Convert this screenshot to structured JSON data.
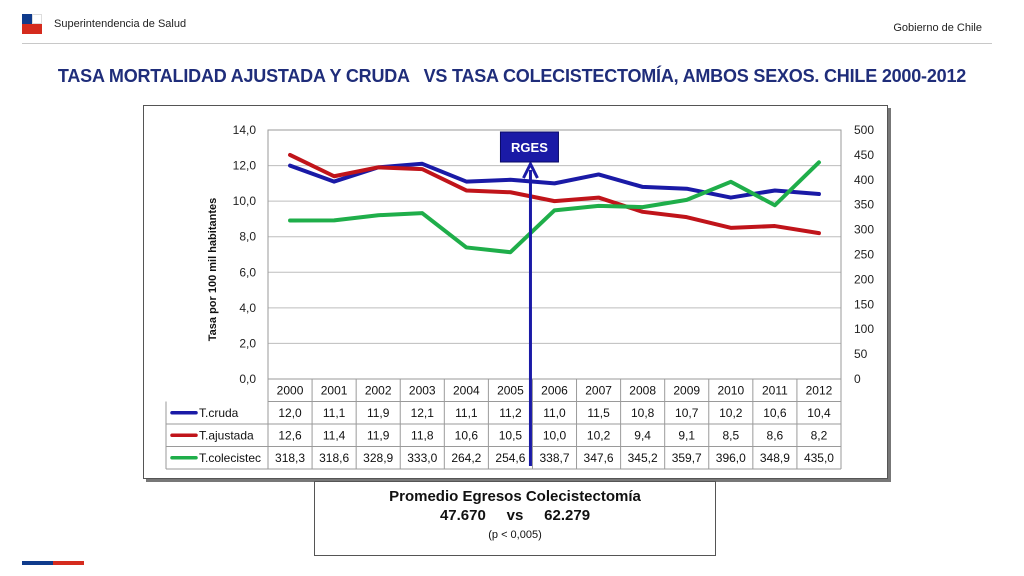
{
  "header": {
    "org": "Superintendencia de Salud",
    "gov": "Gobierno de Chile"
  },
  "title": "TASA MORTALIDAD AJUSTADA Y CRUDA   VS TASA COLECISTECTOMÍA, AMBOS SEXOS. CHILE 2000-2012",
  "chart_data": {
    "type": "line",
    "x": [
      "2000",
      "2001",
      "2002",
      "2003",
      "2004",
      "2005",
      "2006",
      "2007",
      "2008",
      "2009",
      "2010",
      "2011",
      "2012"
    ],
    "series": [
      {
        "name": "T.cruda",
        "axis": "left",
        "color": "#1a1aa6",
        "values": [
          12.0,
          11.1,
          11.9,
          12.1,
          11.1,
          11.2,
          11.0,
          11.5,
          10.8,
          10.7,
          10.2,
          10.6,
          10.4
        ],
        "labels": [
          "12,0",
          "11,1",
          "11,9",
          "12,1",
          "11,1",
          "11,2",
          "11,0",
          "11,5",
          "10,8",
          "10,7",
          "10,2",
          "10,6",
          "10,4"
        ]
      },
      {
        "name": "T.ajustada",
        "axis": "left",
        "color": "#c0141a",
        "values": [
          12.6,
          11.4,
          11.9,
          11.8,
          10.6,
          10.5,
          10.0,
          10.2,
          9.4,
          9.1,
          8.5,
          8.6,
          8.2
        ],
        "labels": [
          "12,6",
          "11,4",
          "11,9",
          "11,8",
          "10,6",
          "10,5",
          "10,0",
          "10,2",
          "9,4",
          "9,1",
          "8,5",
          "8,6",
          "8,2"
        ]
      },
      {
        "name": "T.colecistec",
        "axis": "right",
        "color": "#1fae4a",
        "values": [
          318.3,
          318.6,
          328.9,
          333.0,
          264.2,
          254.6,
          338.7,
          347.6,
          345.2,
          359.7,
          396.0,
          348.9,
          435.0
        ],
        "labels": [
          "318,3",
          "318,6",
          "328,9",
          "333,0",
          "264,2",
          "254,6",
          "338,7",
          "347,6",
          "345,2",
          "359,7",
          "396,0",
          "348,9",
          "435,0"
        ]
      }
    ],
    "ylabel": "Tasa por 100 mil habitantes",
    "ylim": [
      0,
      14
    ],
    "y_ticks": [
      "0,0",
      "2,0",
      "4,0",
      "6,0",
      "8,0",
      "10,0",
      "12,0",
      "14,0"
    ],
    "y2lim": [
      0,
      500
    ],
    "y2_ticks": [
      "0",
      "50",
      "100",
      "150",
      "200",
      "250",
      "300",
      "350",
      "400",
      "450",
      "500"
    ],
    "grid": true,
    "annotation": {
      "label": "RGES",
      "x": "2006",
      "color": "#1a1aa6"
    },
    "data_table": true
  },
  "summary": {
    "title": "Promedio Egresos Colecistectomía",
    "values": "47.670     vs     62.279",
    "p": "(p < 0,005)"
  }
}
